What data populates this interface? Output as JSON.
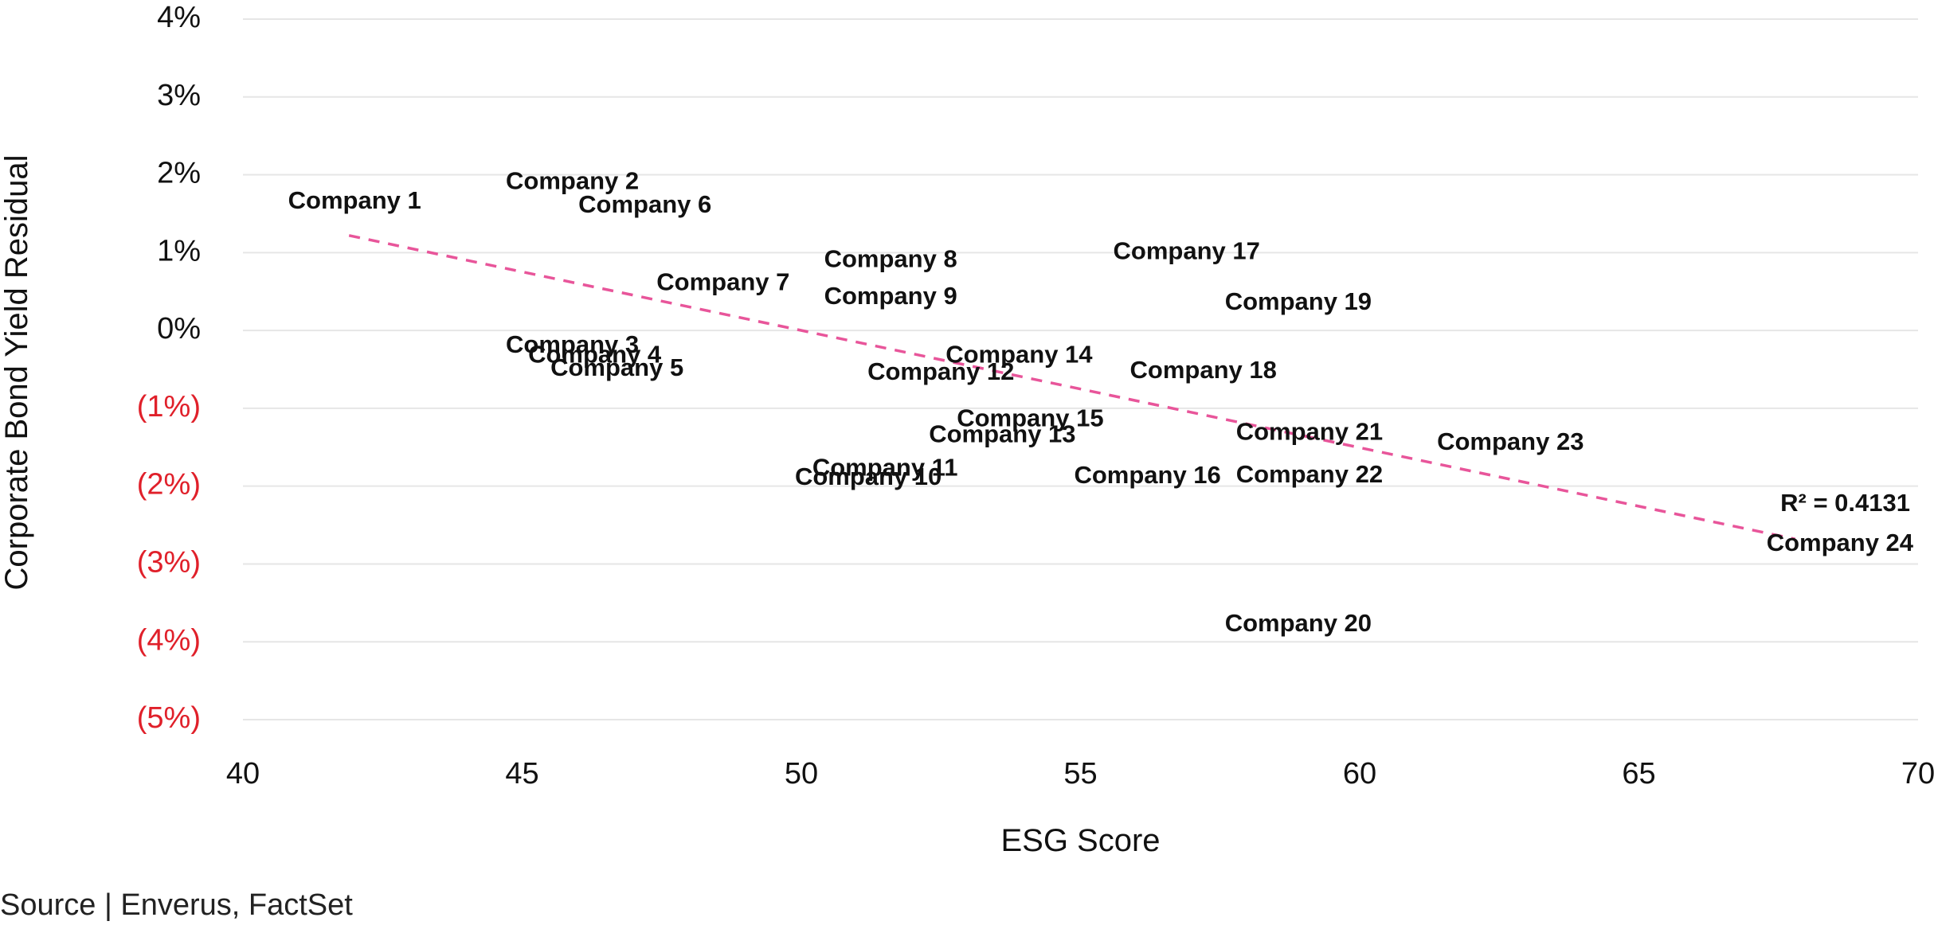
{
  "chart_data": {
    "type": "scatter",
    "xlabel": "ESG Score",
    "ylabel": "Corporate Bond Yield Residual",
    "xlim": [
      40,
      70
    ],
    "ylim": [
      -5,
      4
    ],
    "x_ticks": [
      40,
      45,
      50,
      55,
      60,
      65,
      70
    ],
    "y_ticks": [
      {
        "value": 4,
        "label": "4%"
      },
      {
        "value": 3,
        "label": "3%"
      },
      {
        "value": 2,
        "label": "2%"
      },
      {
        "value": 1,
        "label": "1%"
      },
      {
        "value": 0,
        "label": "0%"
      },
      {
        "value": -1,
        "label": "(1%)"
      },
      {
        "value": -2,
        "label": "(2%)"
      },
      {
        "value": -3,
        "label": "(3%)"
      },
      {
        "value": -4,
        "label": "(4%)"
      },
      {
        "value": -5,
        "label": "(5%)"
      }
    ],
    "negative_tick_color": "#e0202a",
    "positive_tick_color": "#111111",
    "grid": "horizontal",
    "trendline": {
      "type": "linear",
      "color": "#e8559a",
      "style": "dashed",
      "start": {
        "x": 41.9,
        "y": 1.22
      },
      "end": {
        "x": 67.8,
        "y": -2.68
      },
      "r_squared_label": "R² = 0.4131"
    },
    "points": [
      {
        "label": "Company 1",
        "x": 42.0,
        "y": 1.65
      },
      {
        "label": "Company 2",
        "x": 45.9,
        "y": 1.9
      },
      {
        "label": "Company 3",
        "x": 45.9,
        "y": -0.2
      },
      {
        "label": "Company 4",
        "x": 46.3,
        "y": -0.33
      },
      {
        "label": "Company 5",
        "x": 46.7,
        "y": -0.5
      },
      {
        "label": "Company 6",
        "x": 47.2,
        "y": 1.6
      },
      {
        "label": "Company 7",
        "x": 48.6,
        "y": 0.6
      },
      {
        "label": "Company 8",
        "x": 51.6,
        "y": 0.9
      },
      {
        "label": "Company 9",
        "x": 51.6,
        "y": 0.42
      },
      {
        "label": "Company 10",
        "x": 51.2,
        "y": -1.9
      },
      {
        "label": "Company 11",
        "x": 51.5,
        "y": -1.78
      },
      {
        "label": "Company 12",
        "x": 52.5,
        "y": -0.55
      },
      {
        "label": "Company 13",
        "x": 53.6,
        "y": -1.35
      },
      {
        "label": "Company 14",
        "x": 53.9,
        "y": -0.33
      },
      {
        "label": "Company 15",
        "x": 54.1,
        "y": -1.15
      },
      {
        "label": "Company 16",
        "x": 56.2,
        "y": -1.88
      },
      {
        "label": "Company 17",
        "x": 56.9,
        "y": 1.0
      },
      {
        "label": "Company 18",
        "x": 57.2,
        "y": -0.53
      },
      {
        "label": "Company 19",
        "x": 58.9,
        "y": 0.35
      },
      {
        "label": "Company 20",
        "x": 58.9,
        "y": -3.78
      },
      {
        "label": "Company 21",
        "x": 59.1,
        "y": -1.32
      },
      {
        "label": "Company 22",
        "x": 59.1,
        "y": -1.87
      },
      {
        "label": "Company 23",
        "x": 62.7,
        "y": -1.45
      },
      {
        "label": "Company 24",
        "x": 68.6,
        "y": -2.75
      }
    ]
  },
  "source_text": "Source | Enverus, FactSet"
}
